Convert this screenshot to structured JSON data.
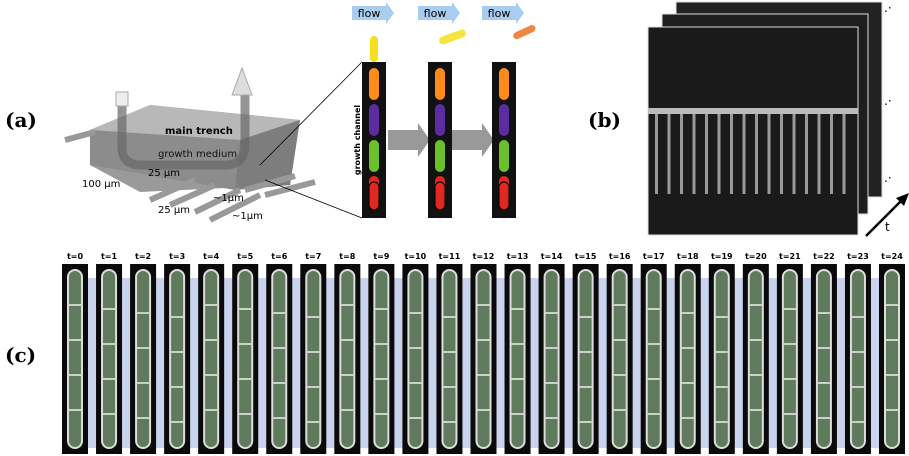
{
  "panel_labels": [
    "(a)",
    "(b)",
    "(c)"
  ],
  "device": {
    "main_trench": "main trench",
    "growth_medium": "growth medium",
    "width_100": "100 μm",
    "depth_25": "25 μm",
    "spacing_25": "25 μm",
    "channel_1": "~1μm",
    "channel_2": "~1μm"
  },
  "flow_labels": [
    "flow",
    "flow",
    "flow"
  ],
  "growth_channel": "growth channel",
  "time_axis": "t",
  "timepoints": [
    "t=0",
    "t=1",
    "t=2",
    "t=3",
    "t=4",
    "t=5",
    "t=6",
    "t=7",
    "t=8",
    "t=9",
    "t=10",
    "t=11",
    "t=12",
    "t=13",
    "t=14",
    "t=15",
    "t=16",
    "t=17",
    "t=18",
    "t=19",
    "t=20",
    "t=21",
    "t=22",
    "t=23",
    "t=24"
  ]
}
